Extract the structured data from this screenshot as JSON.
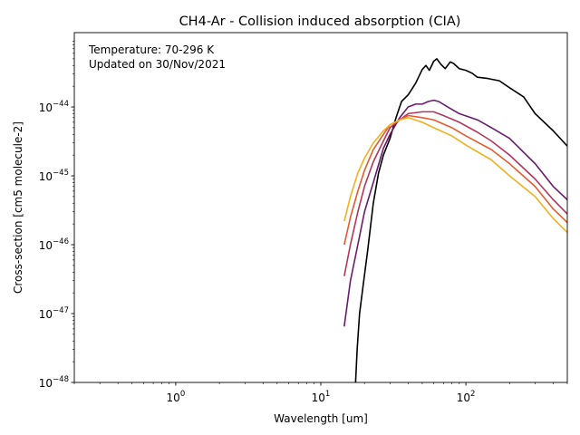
{
  "chart_data": {
    "type": "line",
    "title": "CH4-Ar - Collision induced absorption (CIA)",
    "xlabel": "Wavelength [um]",
    "ylabel": "Cross-section [cm5 molecule-2]",
    "xscale": "log",
    "yscale": "log",
    "xlim": [
      0.2,
      500
    ],
    "ylim": [
      1e-48,
      1.2e-43
    ],
    "grid": false,
    "annotations": [
      "Temperature: 70-296 K",
      "Updated on 30/Nov/2021"
    ],
    "x_ticks": [
      {
        "value": 1,
        "base": "10",
        "exp": "0"
      },
      {
        "value": 10,
        "base": "10",
        "exp": "1"
      },
      {
        "value": 100,
        "base": "10",
        "exp": "2"
      }
    ],
    "y_ticks": [
      {
        "value": 1e-48,
        "base": "10",
        "exp": "−48"
      },
      {
        "value": 1e-47,
        "base": "10",
        "exp": "−47"
      },
      {
        "value": 1e-46,
        "base": "10",
        "exp": "−46"
      },
      {
        "value": 1e-45,
        "base": "10",
        "exp": "−45"
      },
      {
        "value": 1e-44,
        "base": "10",
        "exp": "−44"
      }
    ],
    "series": [
      {
        "color": "#000000",
        "points": [
          [
            17.3,
            8.5e-49
          ],
          [
            17.8,
            3e-48
          ],
          [
            18.5,
            1e-47
          ],
          [
            19.5,
            2.4e-47
          ],
          [
            21,
            8e-47
          ],
          [
            23,
            4e-46
          ],
          [
            25,
            1.1e-45
          ],
          [
            27,
            2e-45
          ],
          [
            30,
            3.5e-45
          ],
          [
            33,
            7e-45
          ],
          [
            36,
            1.2e-44
          ],
          [
            40,
            1.5e-44
          ],
          [
            45,
            2.2e-44
          ],
          [
            50,
            3.5e-44
          ],
          [
            53,
            4e-44
          ],
          [
            56,
            3.4e-44
          ],
          [
            60,
            4.6e-44
          ],
          [
            63,
            5e-44
          ],
          [
            67,
            4.2e-44
          ],
          [
            72,
            3.6e-44
          ],
          [
            78,
            4.5e-44
          ],
          [
            82,
            4.3e-44
          ],
          [
            90,
            3.6e-44
          ],
          [
            100,
            3.4e-44
          ],
          [
            110,
            3.1e-44
          ],
          [
            120,
            2.7e-44
          ],
          [
            140,
            2.6e-44
          ],
          [
            170,
            2.4e-44
          ],
          [
            200,
            1.9e-44
          ],
          [
            250,
            1.4e-44
          ],
          [
            300,
            8e-45
          ],
          [
            400,
            4.5e-45
          ],
          [
            500,
            2.7e-45
          ]
        ]
      },
      {
        "color": "#6a1b6e",
        "points": [
          [
            14.5,
            6.5e-48
          ],
          [
            16,
            3e-47
          ],
          [
            18,
            1e-46
          ],
          [
            20,
            3e-46
          ],
          [
            23,
            8e-46
          ],
          [
            27,
            2.5e-45
          ],
          [
            30,
            4e-45
          ],
          [
            35,
            7e-45
          ],
          [
            40,
            1e-44
          ],
          [
            45,
            1.1e-44
          ],
          [
            50,
            1.1e-44
          ],
          [
            55,
            1.2e-44
          ],
          [
            60,
            1.25e-44
          ],
          [
            65,
            1.2e-44
          ],
          [
            75,
            1e-44
          ],
          [
            90,
            8e-45
          ],
          [
            120,
            6.5e-45
          ],
          [
            150,
            5e-45
          ],
          [
            200,
            3.5e-45
          ],
          [
            300,
            1.5e-45
          ],
          [
            400,
            7e-46
          ],
          [
            500,
            4.5e-46
          ]
        ]
      },
      {
        "color": "#b4355c",
        "points": [
          [
            14.5,
            3.5e-47
          ],
          [
            16,
            1e-46
          ],
          [
            18,
            3e-46
          ],
          [
            20,
            7e-46
          ],
          [
            23,
            1.6e-45
          ],
          [
            27,
            3.2e-45
          ],
          [
            30,
            5e-45
          ],
          [
            35,
            6.5e-45
          ],
          [
            40,
            8e-45
          ],
          [
            50,
            8.5e-45
          ],
          [
            60,
            8.5e-45
          ],
          [
            70,
            7.5e-45
          ],
          [
            90,
            6e-45
          ],
          [
            120,
            4.3e-45
          ],
          [
            150,
            3.2e-45
          ],
          [
            200,
            2e-45
          ],
          [
            300,
            9e-46
          ],
          [
            400,
            4.5e-46
          ],
          [
            500,
            2.8e-46
          ]
        ]
      },
      {
        "color": "#e55b30",
        "points": [
          [
            14.5,
            1e-46
          ],
          [
            16,
            2.5e-46
          ],
          [
            18,
            6e-46
          ],
          [
            20,
            1.2e-45
          ],
          [
            23,
            2.4e-45
          ],
          [
            27,
            4e-45
          ],
          [
            30,
            5.5e-45
          ],
          [
            35,
            6.5e-45
          ],
          [
            40,
            7.5e-45
          ],
          [
            50,
            7e-45
          ],
          [
            60,
            6.5e-45
          ],
          [
            80,
            5e-45
          ],
          [
            100,
            3.8e-45
          ],
          [
            150,
            2.4e-45
          ],
          [
            200,
            1.5e-45
          ],
          [
            300,
            7e-46
          ],
          [
            400,
            3.3e-46
          ],
          [
            500,
            2.1e-46
          ]
        ]
      },
      {
        "color": "#f2b01e",
        "points": [
          [
            14.5,
            2.2e-46
          ],
          [
            16,
            5e-46
          ],
          [
            18,
            1.1e-45
          ],
          [
            20,
            1.8e-45
          ],
          [
            23,
            3e-45
          ],
          [
            27,
            4.5e-45
          ],
          [
            30,
            5.5e-45
          ],
          [
            35,
            6.5e-45
          ],
          [
            40,
            7e-45
          ],
          [
            50,
            6e-45
          ],
          [
            60,
            5e-45
          ],
          [
            80,
            3.8e-45
          ],
          [
            100,
            2.8e-45
          ],
          [
            150,
            1.7e-45
          ],
          [
            200,
            1e-45
          ],
          [
            300,
            5e-46
          ],
          [
            400,
            2.4e-46
          ],
          [
            500,
            1.5e-46
          ]
        ]
      }
    ]
  }
}
